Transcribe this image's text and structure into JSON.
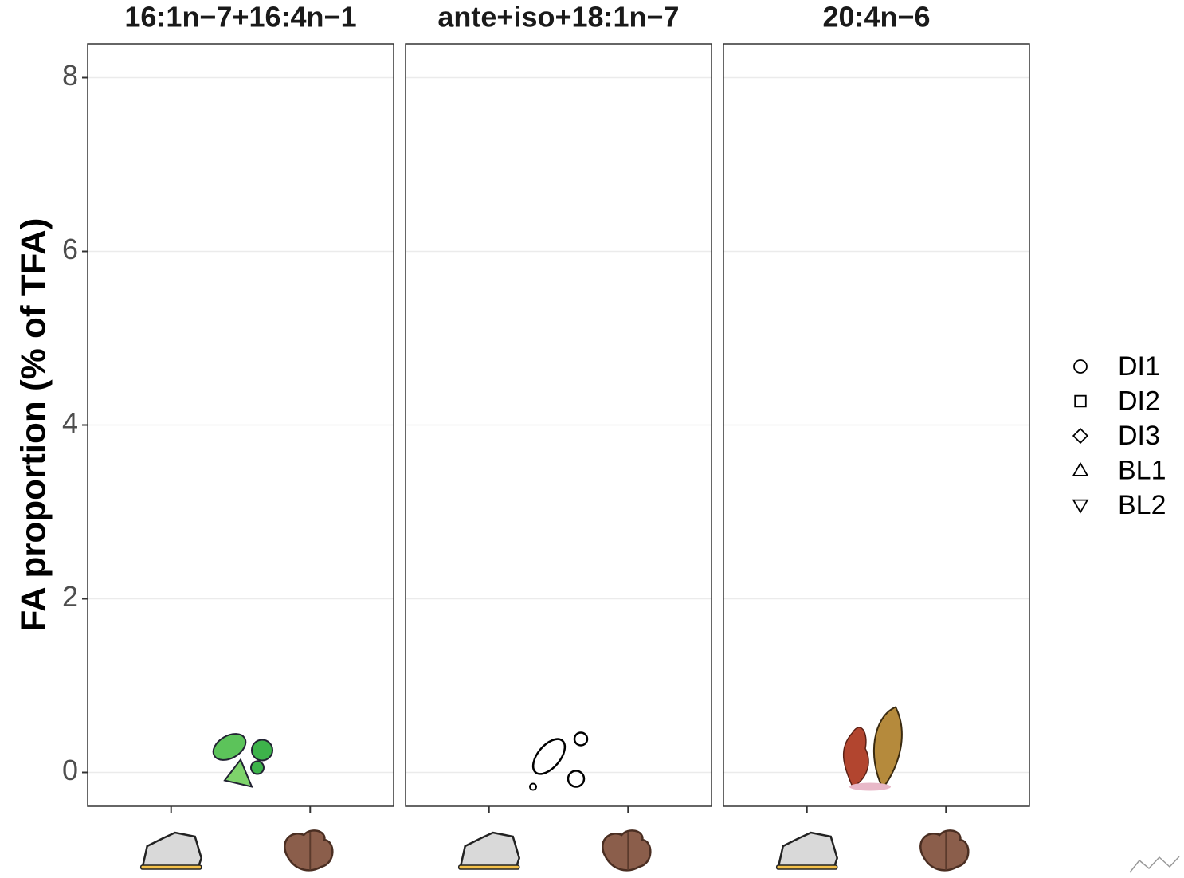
{
  "chart_data": [
    {
      "type": "scatter",
      "title": "16:1n−7+16:4n−1",
      "y_label": "FA proportion (% of TFA)",
      "categories": [
        null,
        null
      ],
      "ylim": [
        -0.39,
        8.39
      ],
      "yticks": [
        0,
        2,
        4,
        6,
        8
      ],
      "grid": true,
      "series": [
        {
          "name": "DI1",
          "shape": "circle",
          "values": [
            null,
            null
          ]
        },
        {
          "name": "DI2",
          "shape": "square",
          "values": [
            null,
            null
          ]
        },
        {
          "name": "DI3",
          "shape": "diamond",
          "values": [
            null,
            null
          ]
        },
        {
          "name": "BL1",
          "shape": "triangle-up",
          "values": [
            null,
            null
          ]
        },
        {
          "name": "BL2",
          "shape": "triangle-down",
          "values": [
            null,
            null
          ]
        }
      ]
    },
    {
      "type": "scatter",
      "title": "ante+iso+18:1n−7",
      "categories": [
        null,
        null
      ],
      "ylim": [
        -0.39,
        8.39
      ],
      "yticks": [
        0,
        2,
        4,
        6,
        8
      ],
      "grid": true
    },
    {
      "type": "scatter",
      "title": "20:4n−6",
      "categories": [
        null,
        null
      ],
      "ylim": [
        -0.39,
        8.39
      ],
      "yticks": [
        0,
        2,
        4,
        6,
        8
      ],
      "grid": true
    }
  ]
}
